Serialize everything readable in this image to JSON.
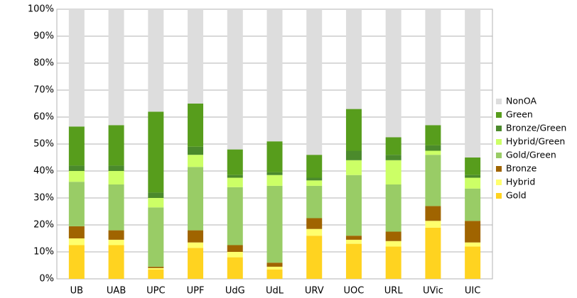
{
  "chart_data": {
    "type": "stacked_bar",
    "categories": [
      "UB",
      "UAB",
      "UPC",
      "UPF",
      "UdG",
      "UdL",
      "URV",
      "UOC",
      "URL",
      "UVic",
      "UIC"
    ],
    "series": [
      {
        "name": "Gold",
        "color": "#ffd320",
        "values": [
          12.5,
          12.5,
          3.5,
          11.5,
          8,
          3.5,
          16,
          13,
          12,
          19,
          12
        ]
      },
      {
        "name": "Hybrid",
        "color": "#ffff6d",
        "values": [
          2.5,
          2,
          0.5,
          2,
          2,
          1,
          2.5,
          1.5,
          2,
          2.5,
          1.5
        ]
      },
      {
        "name": "Bronze",
        "color": "#a06400",
        "values": [
          4.5,
          3.5,
          0.5,
          4.5,
          2.5,
          1.5,
          4,
          1.5,
          3.5,
          5.5,
          8
        ]
      },
      {
        "name": "Gold/Green",
        "color": "#99cc66",
        "values": [
          16.5,
          17,
          22,
          23.5,
          21.5,
          28.5,
          12,
          22.5,
          17.5,
          19,
          12
        ]
      },
      {
        "name": "Hybrid/Green",
        "color": "#ccff66",
        "values": [
          4,
          5,
          3.5,
          4.5,
          3.5,
          4,
          2,
          5.5,
          9,
          1.5,
          4
        ]
      },
      {
        "name": "Bronze/Green",
        "color": "#4b8a2c",
        "values": [
          2,
          2,
          2,
          3,
          1,
          1,
          1,
          3.5,
          2,
          2,
          1
        ]
      },
      {
        "name": "Green",
        "color": "#579d1c",
        "values": [
          14.5,
          15,
          30,
          16,
          9.5,
          11.5,
          8.5,
          15.5,
          6.5,
          7.5,
          6.5
        ]
      },
      {
        "name": "NonOA",
        "color": "#dddddd",
        "values": [
          43.5,
          43,
          38,
          35,
          52,
          49,
          54,
          37,
          47.5,
          43,
          55
        ]
      }
    ],
    "ylim": [
      0,
      100
    ],
    "yticks": [
      {
        "value": 0,
        "label": "0%"
      },
      {
        "value": 10,
        "label": "10%"
      },
      {
        "value": 20,
        "label": "20%"
      },
      {
        "value": 30,
        "label": "30%"
      },
      {
        "value": 40,
        "label": "40%"
      },
      {
        "value": 50,
        "label": "50%"
      },
      {
        "value": 60,
        "label": "60%"
      },
      {
        "value": 70,
        "label": "70%"
      },
      {
        "value": 80,
        "label": "80%"
      },
      {
        "value": 90,
        "label": "90%"
      },
      {
        "value": 100,
        "label": "100%"
      }
    ],
    "grid": true,
    "legend": "right"
  }
}
